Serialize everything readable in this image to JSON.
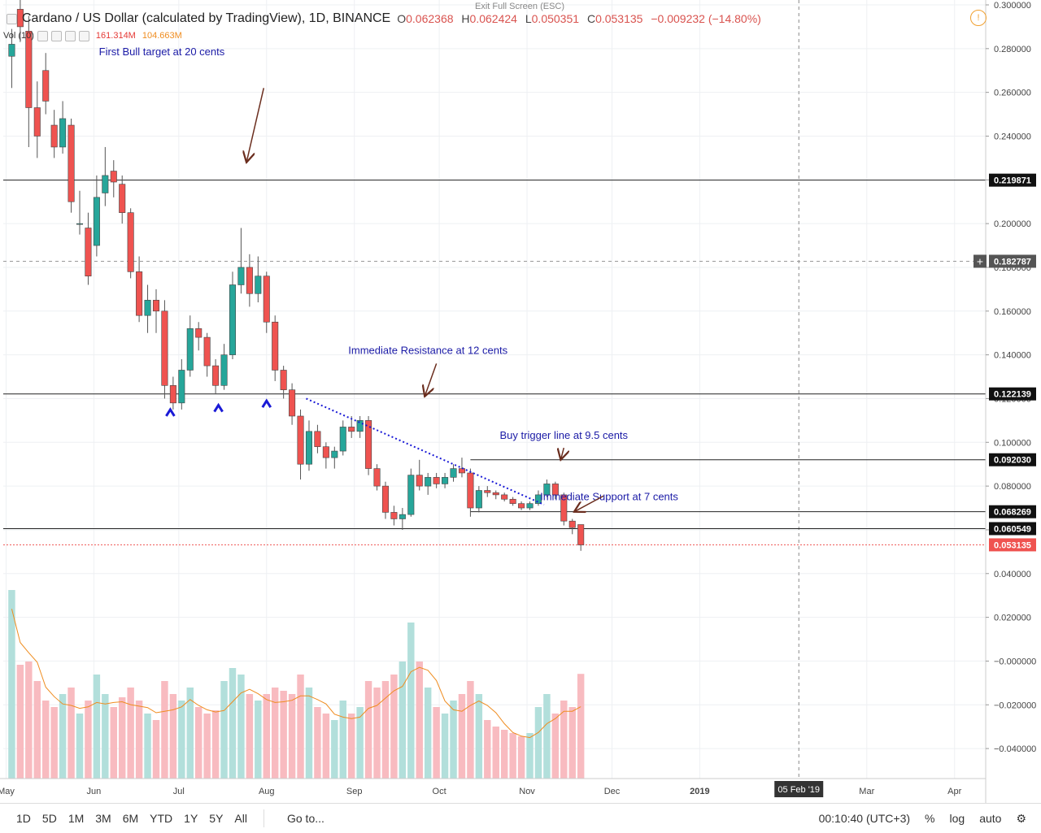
{
  "header": {
    "title": "Cardano / US Dollar (calculated by TradingView), 1D, BINANCE",
    "open_label": "O",
    "open": "0.062368",
    "high_label": "H",
    "high": "0.062424",
    "low_label": "L",
    "low": "0.050351",
    "close_label": "C",
    "close": "0.053135",
    "change": "−0.009232 (−14.80%)",
    "vol_label": "Vol (10)",
    "vol_a": "161.314M",
    "vol_b": "104.663M",
    "exit_fullscreen": "Exit Full Screen (ESC)"
  },
  "toolbar": {
    "ranges": [
      "1D",
      "5D",
      "1M",
      "3M",
      "6M",
      "YTD",
      "1Y",
      "5Y",
      "All"
    ],
    "goto": "Go to...",
    "clock": "00:10:40 (UTC+3)",
    "percent": "%",
    "log": "log",
    "auto": "auto"
  },
  "colors": {
    "up": "#26a69a",
    "down": "#ef5350",
    "annotation": "#1a1aa6",
    "arrow": "#6b2e1f",
    "trend": "#1a1ad6"
  },
  "chart_data": {
    "type": "candlestick",
    "title": "Cardano / US Dollar (calculated by TradingView), 1D, BINANCE",
    "x_ticks": [
      "May",
      "Jun",
      "Jul",
      "Aug",
      "Sep",
      "Oct",
      "Nov",
      "Dec",
      "2019",
      "Mar",
      "Apr"
    ],
    "x_tick_dates": [
      "2018-05-01",
      "2018-06-01",
      "2018-07-01",
      "2018-08-01",
      "2018-09-01",
      "2018-10-01",
      "2018-11-01",
      "2018-12-01",
      "2019-01-01",
      "2019-03-01",
      "2019-04-01"
    ],
    "x_range": [
      "2018-04-30",
      "2019-04-12"
    ],
    "cursor_date_label": "05 Feb '19",
    "cursor_date": "2019-02-05",
    "y_range": [
      -0.05,
      0.3
    ],
    "y_ticks": [
      0.3,
      0.28,
      0.26,
      0.24,
      0.22,
      0.2,
      0.18,
      0.16,
      0.14,
      0.12,
      0.1,
      0.08,
      0.06,
      0.04,
      0.02,
      0.0,
      -0.02,
      -0.04
    ],
    "y_tick_labels": [
      "0.300000",
      "0.280000",
      "0.260000",
      "0.240000",
      "0.220000",
      "0.200000",
      "0.180000",
      "0.160000",
      "0.140000",
      "0.120000",
      "0.100000",
      "0.080000",
      "0.060000",
      "0.040000",
      "0.020000",
      "−0.000000",
      "−0.020000",
      "−0.040000"
    ],
    "levels": [
      {
        "value": 0.219871,
        "label": "0.219871",
        "style": "solid"
      },
      {
        "value": 0.182787,
        "label": "0.182787",
        "style": "cursor"
      },
      {
        "value": 0.122139,
        "label": "0.122139",
        "style": "solid"
      },
      {
        "value": 0.09203,
        "label": "0.092030",
        "style": "solid-partial"
      },
      {
        "value": 0.068269,
        "label": "0.068269",
        "style": "solid-partial"
      },
      {
        "value": 0.060549,
        "label": "0.060549",
        "style": "solid"
      },
      {
        "value": 0.053135,
        "label": "0.053135",
        "style": "price"
      }
    ],
    "annotations": [
      {
        "text": "First Bull target at 20 cents",
        "date": "2018-06-25",
        "value": 0.277
      },
      {
        "text": "Immediate Resistance at 12 cents",
        "date": "2018-09-27",
        "value": 0.1405
      },
      {
        "text": "Buy trigger line at 9.5 cents",
        "date": "2018-11-14",
        "value": 0.1015
      },
      {
        "text": "Immediate Support at 7 cents",
        "date": "2018-11-30",
        "value": 0.0735
      }
    ],
    "arrows": [
      {
        "from": [
          "2018-07-31",
          0.262
        ],
        "to": [
          "2018-07-25",
          0.2285
        ]
      },
      {
        "from": [
          "2018-09-30",
          0.136
        ],
        "to": [
          "2018-09-26",
          0.1215
        ]
      },
      {
        "from": [
          "2018-11-14",
          0.0975
        ],
        "to": [
          "2018-11-13",
          0.0925
        ]
      },
      {
        "from": [
          "2018-11-28",
          0.0755
        ],
        "to": [
          "2018-11-18",
          0.0685
        ]
      }
    ],
    "trendline": {
      "from": [
        "2018-08-15",
        0.12
      ],
      "to": [
        "2018-11-07",
        0.0715
      ]
    },
    "bottom_markers": [
      {
        "date": "2018-06-28",
        "value": 0.1135
      },
      {
        "date": "2018-07-15",
        "value": 0.1155
      },
      {
        "date": "2018-08-01",
        "value": 0.1175
      }
    ],
    "candles": [
      {
        "d": "2018-05-03",
        "o": 0.2765,
        "h": 0.289,
        "l": 0.262,
        "c": 0.282,
        "v": 290
      },
      {
        "d": "2018-05-06",
        "o": 0.298,
        "h": 0.305,
        "l": 0.283,
        "c": 0.29,
        "v": 175
      },
      {
        "d": "2018-05-09",
        "o": 0.288,
        "h": 0.295,
        "l": 0.235,
        "c": 0.253,
        "v": 180
      },
      {
        "d": "2018-05-12",
        "o": 0.253,
        "h": 0.265,
        "l": 0.23,
        "c": 0.24,
        "v": 150
      },
      {
        "d": "2018-05-15",
        "o": 0.27,
        "h": 0.278,
        "l": 0.25,
        "c": 0.256,
        "v": 120
      },
      {
        "d": "2018-05-18",
        "o": 0.245,
        "h": 0.252,
        "l": 0.23,
        "c": 0.235,
        "v": 110
      },
      {
        "d": "2018-05-21",
        "o": 0.235,
        "h": 0.256,
        "l": 0.232,
        "c": 0.248,
        "v": 130
      },
      {
        "d": "2018-05-24",
        "o": 0.245,
        "h": 0.248,
        "l": 0.205,
        "c": 0.21,
        "v": 140
      },
      {
        "d": "2018-05-27",
        "o": 0.2,
        "h": 0.215,
        "l": 0.195,
        "c": 0.2,
        "v": 100
      },
      {
        "d": "2018-05-30",
        "o": 0.198,
        "h": 0.205,
        "l": 0.172,
        "c": 0.176,
        "v": 120
      },
      {
        "d": "2018-06-02",
        "o": 0.19,
        "h": 0.222,
        "l": 0.185,
        "c": 0.212,
        "v": 160
      },
      {
        "d": "2018-06-05",
        "o": 0.214,
        "h": 0.235,
        "l": 0.208,
        "c": 0.222,
        "v": 130
      },
      {
        "d": "2018-06-08",
        "o": 0.224,
        "h": 0.229,
        "l": 0.212,
        "c": 0.219,
        "v": 110
      },
      {
        "d": "2018-06-11",
        "o": 0.218,
        "h": 0.222,
        "l": 0.2,
        "c": 0.205,
        "v": 125
      },
      {
        "d": "2018-06-14",
        "o": 0.205,
        "h": 0.207,
        "l": 0.175,
        "c": 0.178,
        "v": 140
      },
      {
        "d": "2018-06-17",
        "o": 0.178,
        "h": 0.185,
        "l": 0.155,
        "c": 0.158,
        "v": 120
      },
      {
        "d": "2018-06-20",
        "o": 0.158,
        "h": 0.172,
        "l": 0.15,
        "c": 0.165,
        "v": 100
      },
      {
        "d": "2018-06-23",
        "o": 0.165,
        "h": 0.17,
        "l": 0.15,
        "c": 0.16,
        "v": 90
      },
      {
        "d": "2018-06-26",
        "o": 0.16,
        "h": 0.165,
        "l": 0.12,
        "c": 0.126,
        "v": 150
      },
      {
        "d": "2018-06-29",
        "o": 0.126,
        "h": 0.13,
        "l": 0.115,
        "c": 0.118,
        "v": 130
      },
      {
        "d": "2018-07-02",
        "o": 0.118,
        "h": 0.138,
        "l": 0.115,
        "c": 0.133,
        "v": 120
      },
      {
        "d": "2018-07-05",
        "o": 0.133,
        "h": 0.158,
        "l": 0.13,
        "c": 0.152,
        "v": 140
      },
      {
        "d": "2018-07-08",
        "o": 0.152,
        "h": 0.155,
        "l": 0.142,
        "c": 0.148,
        "v": 110
      },
      {
        "d": "2018-07-11",
        "o": 0.148,
        "h": 0.15,
        "l": 0.13,
        "c": 0.135,
        "v": 100
      },
      {
        "d": "2018-07-14",
        "o": 0.135,
        "h": 0.138,
        "l": 0.122,
        "c": 0.126,
        "v": 105
      },
      {
        "d": "2018-07-17",
        "o": 0.126,
        "h": 0.145,
        "l": 0.124,
        "c": 0.14,
        "v": 150
      },
      {
        "d": "2018-07-20",
        "o": 0.14,
        "h": 0.178,
        "l": 0.138,
        "c": 0.172,
        "v": 170
      },
      {
        "d": "2018-07-23",
        "o": 0.172,
        "h": 0.198,
        "l": 0.168,
        "c": 0.18,
        "v": 160
      },
      {
        "d": "2018-07-26",
        "o": 0.18,
        "h": 0.186,
        "l": 0.162,
        "c": 0.168,
        "v": 130
      },
      {
        "d": "2018-07-29",
        "o": 0.168,
        "h": 0.185,
        "l": 0.164,
        "c": 0.176,
        "v": 120
      },
      {
        "d": "2018-08-01",
        "o": 0.176,
        "h": 0.178,
        "l": 0.15,
        "c": 0.155,
        "v": 130
      },
      {
        "d": "2018-08-04",
        "o": 0.155,
        "h": 0.158,
        "l": 0.128,
        "c": 0.133,
        "v": 140
      },
      {
        "d": "2018-08-07",
        "o": 0.133,
        "h": 0.135,
        "l": 0.12,
        "c": 0.124,
        "v": 135
      },
      {
        "d": "2018-08-10",
        "o": 0.124,
        "h": 0.127,
        "l": 0.108,
        "c": 0.112,
        "v": 130
      },
      {
        "d": "2018-08-13",
        "o": 0.112,
        "h": 0.115,
        "l": 0.083,
        "c": 0.09,
        "v": 160
      },
      {
        "d": "2018-08-16",
        "o": 0.09,
        "h": 0.11,
        "l": 0.087,
        "c": 0.105,
        "v": 140
      },
      {
        "d": "2018-08-19",
        "o": 0.105,
        "h": 0.108,
        "l": 0.095,
        "c": 0.098,
        "v": 110
      },
      {
        "d": "2018-08-22",
        "o": 0.098,
        "h": 0.1,
        "l": 0.088,
        "c": 0.093,
        "v": 100
      },
      {
        "d": "2018-08-25",
        "o": 0.093,
        "h": 0.098,
        "l": 0.088,
        "c": 0.096,
        "v": 90
      },
      {
        "d": "2018-08-28",
        "o": 0.096,
        "h": 0.11,
        "l": 0.094,
        "c": 0.107,
        "v": 120
      },
      {
        "d": "2018-08-31",
        "o": 0.107,
        "h": 0.112,
        "l": 0.102,
        "c": 0.105,
        "v": 100
      },
      {
        "d": "2018-09-03",
        "o": 0.105,
        "h": 0.112,
        "l": 0.102,
        "c": 0.11,
        "v": 110
      },
      {
        "d": "2018-09-06",
        "o": 0.11,
        "h": 0.112,
        "l": 0.085,
        "c": 0.088,
        "v": 150
      },
      {
        "d": "2018-09-09",
        "o": 0.088,
        "h": 0.09,
        "l": 0.078,
        "c": 0.08,
        "v": 140
      },
      {
        "d": "2018-09-12",
        "o": 0.08,
        "h": 0.082,
        "l": 0.065,
        "c": 0.068,
        "v": 150
      },
      {
        "d": "2018-09-15",
        "o": 0.068,
        "h": 0.071,
        "l": 0.062,
        "c": 0.065,
        "v": 160
      },
      {
        "d": "2018-09-18",
        "o": 0.065,
        "h": 0.07,
        "l": 0.06,
        "c": 0.067,
        "v": 180
      },
      {
        "d": "2018-09-21",
        "o": 0.067,
        "h": 0.088,
        "l": 0.066,
        "c": 0.085,
        "v": 240
      },
      {
        "d": "2018-09-24",
        "o": 0.085,
        "h": 0.092,
        "l": 0.078,
        "c": 0.08,
        "v": 180
      },
      {
        "d": "2018-09-27",
        "o": 0.08,
        "h": 0.086,
        "l": 0.076,
        "c": 0.084,
        "v": 140
      },
      {
        "d": "2018-09-30",
        "o": 0.084,
        "h": 0.086,
        "l": 0.079,
        "c": 0.081,
        "v": 110
      },
      {
        "d": "2018-10-03",
        "o": 0.081,
        "h": 0.086,
        "l": 0.079,
        "c": 0.084,
        "v": 100
      },
      {
        "d": "2018-10-06",
        "o": 0.084,
        "h": 0.09,
        "l": 0.082,
        "c": 0.088,
        "v": 120
      },
      {
        "d": "2018-10-09",
        "o": 0.088,
        "h": 0.093,
        "l": 0.084,
        "c": 0.086,
        "v": 130
      },
      {
        "d": "2018-10-12",
        "o": 0.086,
        "h": 0.088,
        "l": 0.066,
        "c": 0.07,
        "v": 150
      },
      {
        "d": "2018-10-15",
        "o": 0.07,
        "h": 0.08,
        "l": 0.068,
        "c": 0.078,
        "v": 130
      },
      {
        "d": "2018-10-18",
        "o": 0.078,
        "h": 0.08,
        "l": 0.075,
        "c": 0.077,
        "v": 90
      },
      {
        "d": "2018-10-21",
        "o": 0.077,
        "h": 0.078,
        "l": 0.074,
        "c": 0.076,
        "v": 80
      },
      {
        "d": "2018-10-24",
        "o": 0.076,
        "h": 0.077,
        "l": 0.073,
        "c": 0.074,
        "v": 75
      },
      {
        "d": "2018-10-27",
        "o": 0.074,
        "h": 0.075,
        "l": 0.071,
        "c": 0.072,
        "v": 70
      },
      {
        "d": "2018-10-30",
        "o": 0.072,
        "h": 0.073,
        "l": 0.069,
        "c": 0.07,
        "v": 65
      },
      {
        "d": "2018-11-02",
        "o": 0.07,
        "h": 0.073,
        "l": 0.069,
        "c": 0.072,
        "v": 70
      },
      {
        "d": "2018-11-05",
        "o": 0.072,
        "h": 0.078,
        "l": 0.071,
        "c": 0.076,
        "v": 110
      },
      {
        "d": "2018-11-08",
        "o": 0.076,
        "h": 0.083,
        "l": 0.075,
        "c": 0.081,
        "v": 130
      },
      {
        "d": "2018-11-11",
        "o": 0.081,
        "h": 0.082,
        "l": 0.074,
        "c": 0.076,
        "v": 100
      },
      {
        "d": "2018-11-14",
        "o": 0.076,
        "h": 0.077,
        "l": 0.062,
        "c": 0.064,
        "v": 120
      },
      {
        "d": "2018-11-17",
        "o": 0.064,
        "h": 0.065,
        "l": 0.058,
        "c": 0.061,
        "v": 110
      },
      {
        "d": "2018-11-20",
        "o": 0.0624,
        "h": 0.0624,
        "l": 0.0504,
        "c": 0.0531,
        "v": 161
      }
    ]
  }
}
